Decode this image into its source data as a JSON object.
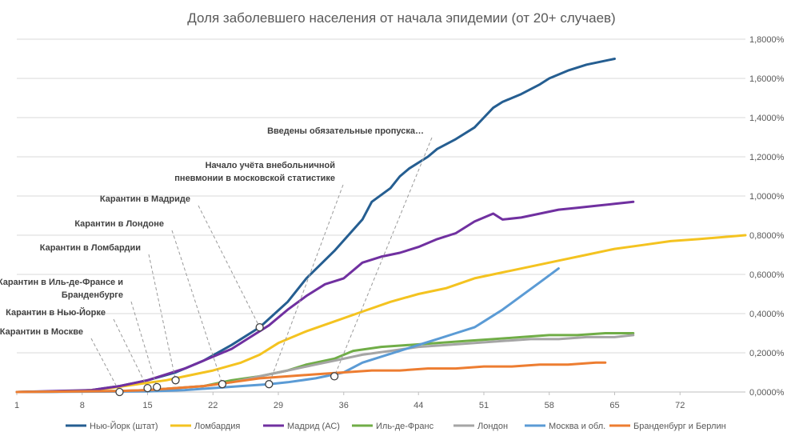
{
  "chart_data": {
    "type": "line",
    "title": "Доля заболевшего населения от начала эпидемии (от 20+ случаев)",
    "xlabel": "",
    "ylabel": "",
    "xlim": [
      1,
      79
    ],
    "ylim": [
      0,
      0.018
    ],
    "x_ticks": [
      1,
      8,
      15,
      22,
      29,
      36,
      44,
      51,
      58,
      65,
      72
    ],
    "y_ticks": [
      0,
      0.002,
      0.004,
      0.006,
      0.008,
      0.01,
      0.012,
      0.014,
      0.016,
      0.018
    ],
    "y_tick_labels": [
      "0,0000%",
      "0,2000%",
      "0,4000%",
      "0,6000%",
      "0,8000%",
      "1,0000%",
      "1,2000%",
      "1,4000%",
      "1,6000%",
      "1,8000%"
    ],
    "grid": true,
    "legend_position": "bottom",
    "series": [
      {
        "name": "Нью-Йорк (штат)",
        "color": "#255e91",
        "points": [
          [
            1,
            0
          ],
          [
            6,
            2e-05
          ],
          [
            9,
            0.0001
          ],
          [
            12,
            0.0003
          ],
          [
            15,
            0.0006
          ],
          [
            18,
            0.001
          ],
          [
            21,
            0.0016
          ],
          [
            24,
            0.0024
          ],
          [
            27,
            0.0033
          ],
          [
            30,
            0.0046
          ],
          [
            32,
            0.0058
          ],
          [
            35,
            0.0072
          ],
          [
            38,
            0.0088
          ],
          [
            39,
            0.0097
          ],
          [
            41,
            0.0104
          ],
          [
            42,
            0.011
          ],
          [
            43,
            0.0114
          ],
          [
            45,
            0.012
          ],
          [
            46,
            0.0124
          ],
          [
            48,
            0.0129
          ],
          [
            50,
            0.0135
          ],
          [
            51,
            0.014
          ],
          [
            52,
            0.0145
          ],
          [
            53,
            0.0148
          ],
          [
            55,
            0.0152
          ],
          [
            57,
            0.0157
          ],
          [
            58,
            0.016
          ],
          [
            60,
            0.0164
          ],
          [
            62,
            0.0167
          ],
          [
            65,
            0.017
          ]
        ]
      },
      {
        "name": "Ломбардия",
        "color": "#f4c320",
        "points": [
          [
            1,
            0
          ],
          [
            8,
            5e-05
          ],
          [
            11,
            0.0002
          ],
          [
            14,
            0.0004
          ],
          [
            17,
            0.0006
          ],
          [
            19,
            0.0008
          ],
          [
            22,
            0.0011
          ],
          [
            25,
            0.0015
          ],
          [
            27,
            0.0019
          ],
          [
            29,
            0.0025
          ],
          [
            32,
            0.0031
          ],
          [
            35,
            0.0036
          ],
          [
            38,
            0.0041
          ],
          [
            41,
            0.0046
          ],
          [
            44,
            0.005
          ],
          [
            47,
            0.0053
          ],
          [
            50,
            0.0058
          ],
          [
            53,
            0.0061
          ],
          [
            56,
            0.0064
          ],
          [
            59,
            0.0067
          ],
          [
            62,
            0.007
          ],
          [
            65,
            0.0073
          ],
          [
            68,
            0.0075
          ],
          [
            71,
            0.0077
          ],
          [
            74,
            0.0078
          ],
          [
            79,
            0.008
          ]
        ]
      },
      {
        "name": "Мадрид (АС)",
        "color": "#7030a0",
        "points": [
          [
            1,
            0
          ],
          [
            9,
            0.0001
          ],
          [
            12,
            0.0003
          ],
          [
            15,
            0.0006
          ],
          [
            17,
            0.0009
          ],
          [
            19,
            0.0012
          ],
          [
            21,
            0.0016
          ],
          [
            24,
            0.0022
          ],
          [
            26,
            0.0028
          ],
          [
            28,
            0.0034
          ],
          [
            30,
            0.0042
          ],
          [
            32,
            0.0049
          ],
          [
            34,
            0.0055
          ],
          [
            36,
            0.0058
          ],
          [
            38,
            0.0066
          ],
          [
            40,
            0.0069
          ],
          [
            42,
            0.0071
          ],
          [
            44,
            0.0074
          ],
          [
            46,
            0.0078
          ],
          [
            48,
            0.0081
          ],
          [
            50,
            0.0087
          ],
          [
            52,
            0.0091
          ],
          [
            53,
            0.0088
          ],
          [
            55,
            0.0089
          ],
          [
            57,
            0.0091
          ],
          [
            59,
            0.0093
          ],
          [
            61,
            0.0094
          ],
          [
            63,
            0.0095
          ],
          [
            65,
            0.0096
          ],
          [
            67,
            0.0097
          ]
        ]
      },
      {
        "name": "Иль-де-Франс",
        "color": "#70ad47",
        "points": [
          [
            1,
            0
          ],
          [
            12,
            5e-05
          ],
          [
            15,
            0.0001
          ],
          [
            18,
            0.0002
          ],
          [
            21,
            0.0003
          ],
          [
            24,
            0.0006
          ],
          [
            27,
            0.0008
          ],
          [
            30,
            0.0011
          ],
          [
            32,
            0.0014
          ],
          [
            35,
            0.0017
          ],
          [
            37,
            0.0021
          ],
          [
            40,
            0.0023
          ],
          [
            43,
            0.0024
          ],
          [
            46,
            0.0025
          ],
          [
            49,
            0.0026
          ],
          [
            52,
            0.0027
          ],
          [
            55,
            0.0028
          ],
          [
            58,
            0.0029
          ],
          [
            61,
            0.0029
          ],
          [
            64,
            0.003
          ],
          [
            67,
            0.003
          ]
        ]
      },
      {
        "name": "Лондон",
        "color": "#a5a5a5",
        "points": [
          [
            1,
            0
          ],
          [
            12,
            5e-05
          ],
          [
            15,
            0.0001
          ],
          [
            18,
            0.0002
          ],
          [
            21,
            0.0003
          ],
          [
            24,
            0.0005
          ],
          [
            27,
            0.0008
          ],
          [
            30,
            0.0011
          ],
          [
            33,
            0.0014
          ],
          [
            36,
            0.0017
          ],
          [
            38,
            0.0019
          ],
          [
            41,
            0.0021
          ],
          [
            44,
            0.0023
          ],
          [
            47,
            0.0024
          ],
          [
            50,
            0.0025
          ],
          [
            53,
            0.0026
          ],
          [
            56,
            0.0027
          ],
          [
            59,
            0.0027
          ],
          [
            62,
            0.0028
          ],
          [
            65,
            0.0028
          ],
          [
            67,
            0.0029
          ]
        ]
      },
      {
        "name": "Москва и обл.",
        "color": "#5b9bd5",
        "points": [
          [
            1,
            0
          ],
          [
            15,
            3e-05
          ],
          [
            19,
            0.0001
          ],
          [
            22,
            0.0002
          ],
          [
            25,
            0.0003
          ],
          [
            28,
            0.0004
          ],
          [
            30,
            0.0005
          ],
          [
            33,
            0.0007
          ],
          [
            36,
            0.001
          ],
          [
            38,
            0.0015
          ],
          [
            40,
            0.0018
          ],
          [
            42,
            0.0021
          ],
          [
            44,
            0.0024
          ],
          [
            46,
            0.0027
          ],
          [
            48,
            0.003
          ],
          [
            50,
            0.0033
          ],
          [
            51,
            0.0036
          ],
          [
            53,
            0.0042
          ],
          [
            55,
            0.0049
          ],
          [
            57,
            0.0056
          ],
          [
            59,
            0.0063
          ]
        ]
      },
      {
        "name": "Бранденбург и Берлин",
        "color": "#ed7d31",
        "points": [
          [
            1,
            0
          ],
          [
            12,
            5e-05
          ],
          [
            15,
            0.0001
          ],
          [
            18,
            0.0002
          ],
          [
            21,
            0.0003
          ],
          [
            24,
            0.0005
          ],
          [
            27,
            0.0007
          ],
          [
            30,
            0.0008
          ],
          [
            33,
            0.0009
          ],
          [
            36,
            0.001
          ],
          [
            39,
            0.0011
          ],
          [
            42,
            0.0011
          ],
          [
            45,
            0.0012
          ],
          [
            48,
            0.0012
          ],
          [
            51,
            0.0013
          ],
          [
            54,
            0.0013
          ],
          [
            57,
            0.0014
          ],
          [
            60,
            0.0014
          ],
          [
            63,
            0.0015
          ],
          [
            64,
            0.0015
          ]
        ]
      }
    ],
    "annotations": [
      {
        "lines": [
          "Введены обязательные пропуска…"
        ],
        "x": 35,
        "y": 0.0008,
        "color": "#ed7d31"
      },
      {
        "lines": [
          "Начало учёта внебольничной",
          "пневмонии в московской статистике"
        ],
        "x": 28,
        "y": 0.0004,
        "color": "#5b9bd5"
      },
      {
        "lines": [
          "Карантин в Мадриде"
        ],
        "x": 27,
        "y": 0.0033,
        "color": "#7030a0"
      },
      {
        "lines": [
          "Карантин в Лондоне"
        ],
        "x": 23,
        "y": 0.0004,
        "color": "#a5a5a5"
      },
      {
        "lines": [
          "Карантин в Ломбардии"
        ],
        "x": 18,
        "y": 0.0006,
        "color": "#f4c320"
      },
      {
        "lines": [
          "Карантин в Иль-де-Франсе и",
          "Бранденбурге"
        ],
        "x": 16,
        "y": 0.00025,
        "color": "#70ad47"
      },
      {
        "lines": [
          "Карантин в Нью-Йорке"
        ],
        "x": 15,
        "y": 0.0002,
        "color": "#255e91"
      },
      {
        "lines": [
          "Карантин в Москве"
        ],
        "x": 12,
        "y": 0,
        "color": "#255e91"
      }
    ]
  }
}
